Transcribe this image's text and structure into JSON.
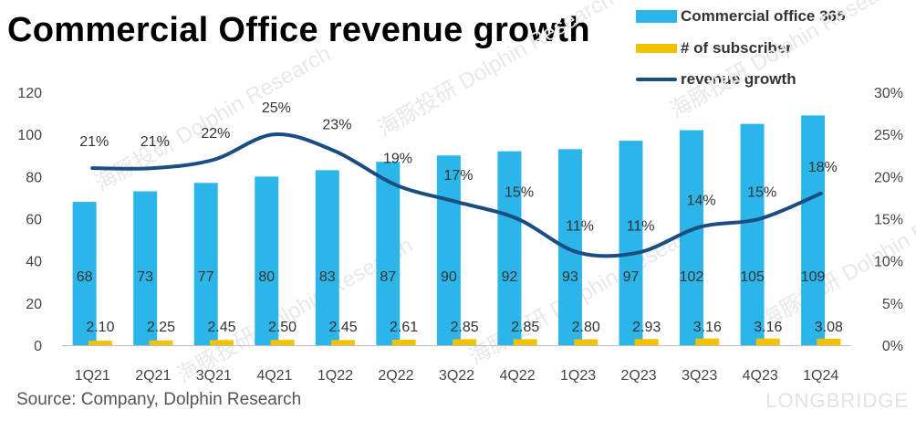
{
  "title": "Commercial Office revenue growth",
  "source": "Source: Company, Dolphin Research",
  "watermark": {
    "brand": "LONGBRIDGE",
    "text": "Dolphin Research",
    "cn_text": "海豚投研"
  },
  "colors": {
    "bar": "#2CB5E8",
    "subscriber": "#F2C200",
    "line": "#1A4E82",
    "axis": "#bfbfbf"
  },
  "legend": [
    {
      "label": "Commercial office 365",
      "type": "bar-main"
    },
    {
      "label": "# of subscriber",
      "type": "bar-sub"
    },
    {
      "label": "revenue growth",
      "type": "line"
    }
  ],
  "chart_data": {
    "type": "bar",
    "categories": [
      "1Q21",
      "2Q21",
      "3Q21",
      "4Q21",
      "1Q22",
      "2Q22",
      "3Q22",
      "4Q22",
      "1Q23",
      "2Q23",
      "3Q23",
      "4Q23",
      "1Q24"
    ],
    "series": [
      {
        "name": "Commercial office 365",
        "axis": "left",
        "values": [
          68,
          73,
          77,
          80,
          83,
          87,
          90,
          92,
          93,
          97,
          102,
          105,
          109
        ],
        "labels": [
          "68",
          "73",
          "77",
          "80",
          "83",
          "87",
          "90",
          "92",
          "93",
          "97",
          "102",
          "105",
          "109"
        ]
      },
      {
        "name": "# of subscriber",
        "axis": "left",
        "values": [
          2.1,
          2.25,
          2.45,
          2.5,
          2.45,
          2.61,
          2.85,
          2.85,
          2.8,
          2.93,
          3.16,
          3.16,
          3.08
        ],
        "labels": [
          "2.10",
          "2.25",
          "2.45",
          "2.50",
          "2.45",
          "2.61",
          "2.85",
          "2.85",
          "2.80",
          "2.93",
          "3.16",
          "3.16",
          "3.08"
        ]
      },
      {
        "name": "revenue growth",
        "type": "line",
        "axis": "right",
        "values": [
          21,
          21,
          22,
          25,
          23,
          19,
          17,
          15,
          11,
          11,
          14,
          15,
          18
        ],
        "labels": [
          "21%",
          "21%",
          "22%",
          "25%",
          "23%",
          "19%",
          "17%",
          "15%",
          "11%",
          "11%",
          "14%",
          "15%",
          "18%"
        ]
      }
    ],
    "left_axis": {
      "min": 0,
      "max": 120,
      "ticks": [
        "0",
        "20",
        "40",
        "60",
        "80",
        "100",
        "120"
      ]
    },
    "right_axis": {
      "min": 0,
      "max": 30,
      "ticks": [
        "0%",
        "5%",
        "10%",
        "15%",
        "20%",
        "25%",
        "30%"
      ]
    },
    "legend_position": "top-right",
    "grid": false
  }
}
